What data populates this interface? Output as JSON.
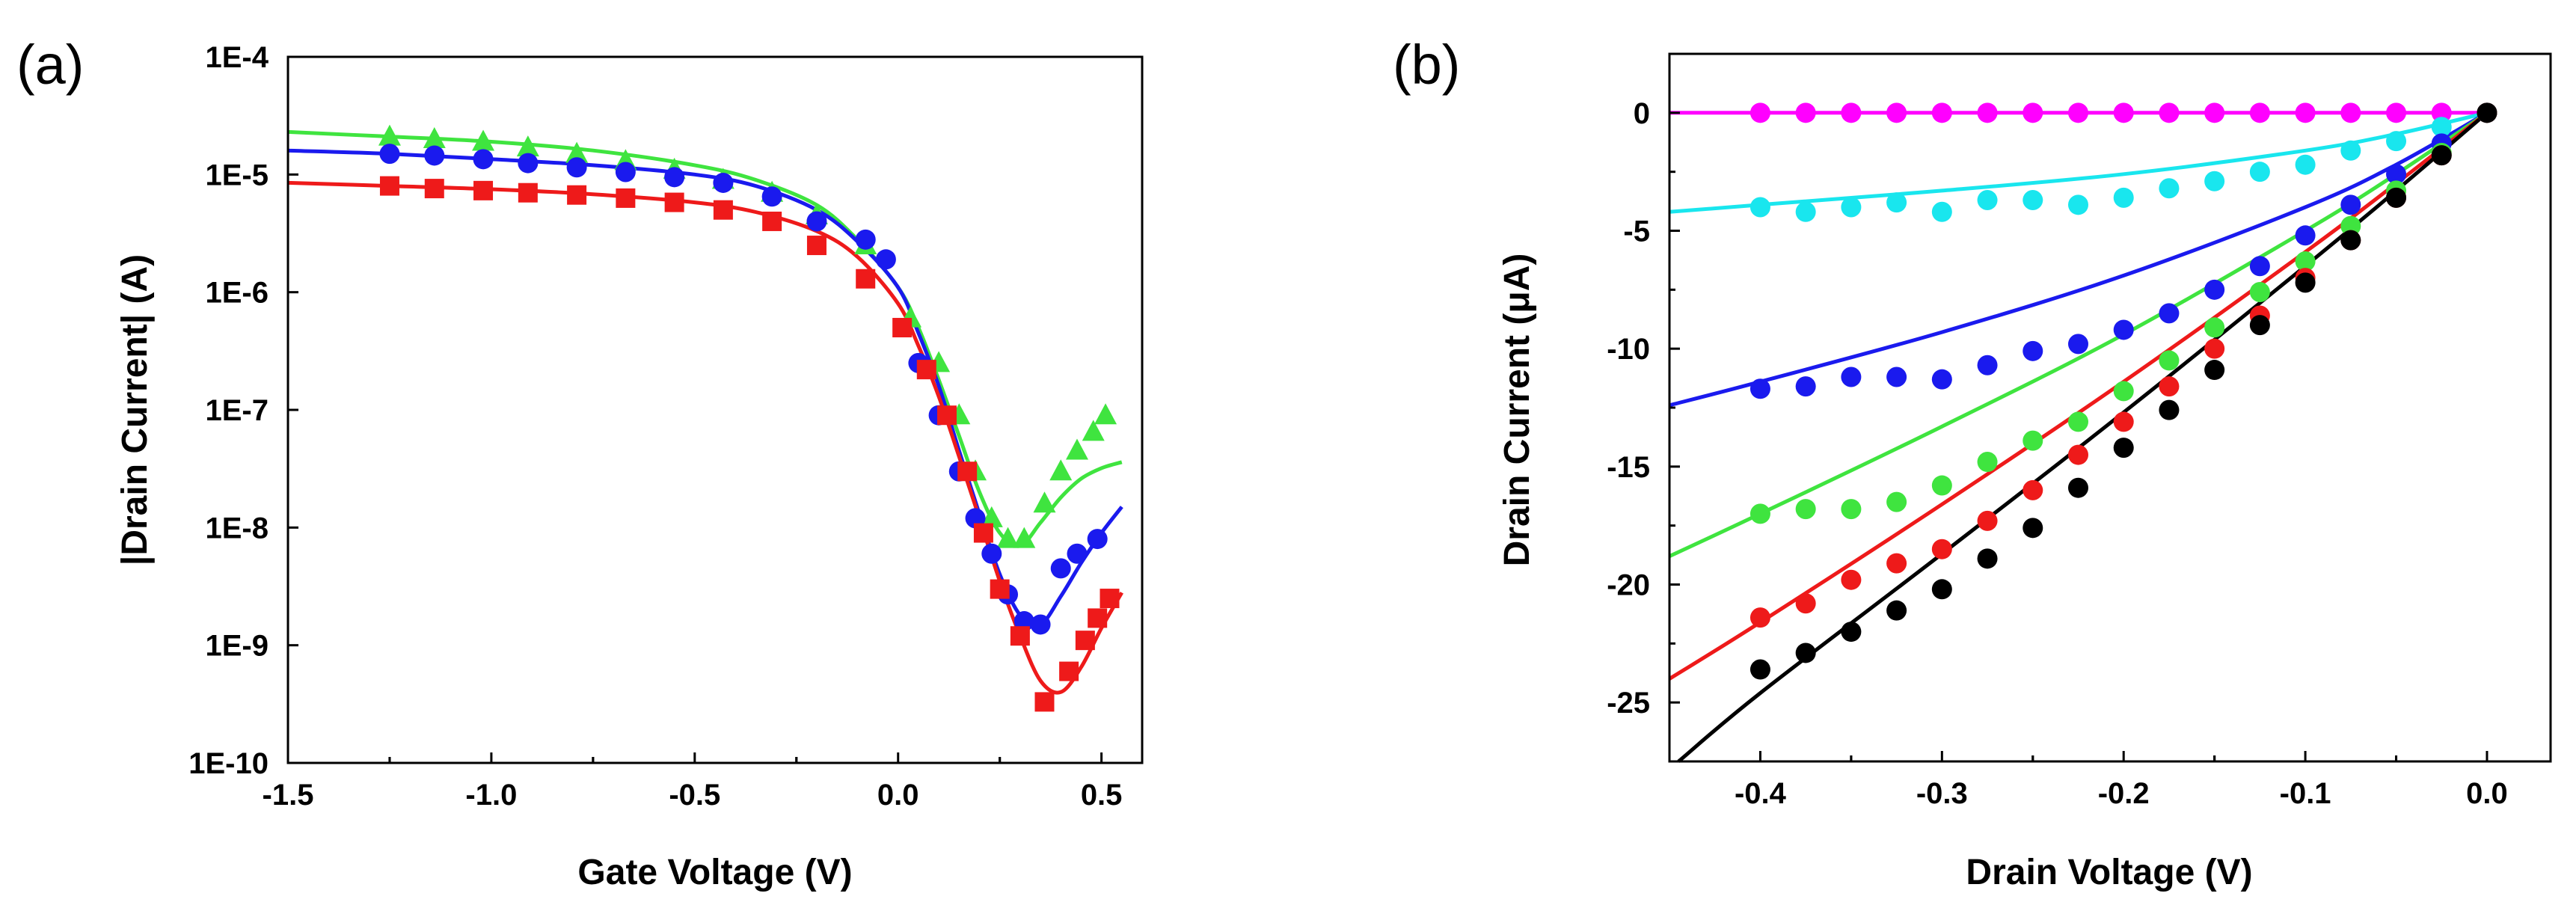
{
  "chart_data": [
    {
      "panel_label": "(a)",
      "type": "scatter",
      "xlabel": "Gate Voltage (V)",
      "ylabel": "|Drain Current| (A)",
      "xlim": [
        -1.5,
        0.6
      ],
      "ylim": [
        1e-10,
        0.0001
      ],
      "y_scale": "log",
      "grid": false,
      "x_ticks": [
        -1.5,
        -1.0,
        -0.5,
        0.0,
        0.5
      ],
      "x_tick_labels": [
        "-1.5",
        "-1.0",
        "-0.5",
        "0.0",
        "0.5"
      ],
      "y_ticks": [
        1e-10,
        1e-09,
        1e-08,
        1e-07,
        1e-06,
        1e-05,
        0.0001
      ],
      "y_tick_labels": [
        "1E-10",
        "1E-9",
        "1E-8",
        "1E-7",
        "1E-6",
        "1E-5",
        "1E-4"
      ],
      "series": [
        {
          "color": "#3fe43f",
          "marker": "triangle",
          "x": [
            -1.25,
            -1.14,
            -1.02,
            -0.91,
            -0.79,
            -0.67,
            -0.55,
            -0.43,
            -0.31,
            -0.2,
            -0.08,
            0.03,
            0.1,
            0.15,
            0.19,
            0.23,
            0.27,
            0.31,
            0.36,
            0.4,
            0.44,
            0.48,
            0.51
          ],
          "y": [
            2.1e-05,
            2e-05,
            1.9e-05,
            1.7e-05,
            1.5e-05,
            1.3e-05,
            1.1e-05,
            9e-06,
            7e-06,
            4.5e-06,
            2.5e-06,
            6e-07,
            2.5e-07,
            9e-08,
            3e-08,
            1.2e-08,
            8e-09,
            8e-09,
            1.6e-08,
            3e-08,
            4.5e-08,
            6.5e-08,
            9e-08
          ],
          "fit_x": [
            -1.5,
            -1.25,
            -1.0,
            -0.75,
            -0.5,
            -0.35,
            -0.2,
            -0.1,
            0.0,
            0.05,
            0.1,
            0.15,
            0.2,
            0.25,
            0.3,
            0.35,
            0.4,
            0.45,
            0.5,
            0.55
          ],
          "fit_y": [
            2.3e-05,
            2.1e-05,
            1.9e-05,
            1.6e-05,
            1.2e-05,
            9e-06,
            5.5e-06,
            2.8e-06,
            1.1e-06,
            5e-07,
            1.8e-07,
            6e-08,
            2e-08,
            9e-09,
            7e-09,
            1.1e-08,
            1.8e-08,
            2.6e-08,
            3.2e-08,
            3.6e-08
          ]
        },
        {
          "color": "#1a1aee",
          "marker": "circle",
          "x": [
            -1.25,
            -1.14,
            -1.02,
            -0.91,
            -0.79,
            -0.67,
            -0.55,
            -0.43,
            -0.31,
            -0.2,
            -0.08,
            -0.03,
            0.05,
            0.1,
            0.15,
            0.19,
            0.23,
            0.27,
            0.31,
            0.35,
            0.4,
            0.44,
            0.49
          ],
          "y": [
            1.5e-05,
            1.45e-05,
            1.35e-05,
            1.25e-05,
            1.15e-05,
            1.05e-05,
            9.5e-06,
            8.5e-06,
            6.5e-06,
            4e-06,
            2.8e-06,
            1.9e-06,
            2.5e-07,
            9e-08,
            3e-08,
            1.2e-08,
            6e-09,
            2.7e-09,
            1.6e-09,
            1.5e-09,
            4.5e-09,
            6e-09,
            8e-09
          ],
          "fit_x": [
            -1.5,
            -1.25,
            -1.0,
            -0.75,
            -0.5,
            -0.35,
            -0.2,
            -0.1,
            0.0,
            0.05,
            0.1,
            0.15,
            0.2,
            0.25,
            0.3,
            0.35,
            0.4,
            0.45,
            0.5,
            0.55
          ],
          "fit_y": [
            1.6e-05,
            1.5e-05,
            1.35e-05,
            1.2e-05,
            1e-05,
            8e-06,
            5e-06,
            2.7e-06,
            1.1e-06,
            4.5e-07,
            1.6e-07,
            4.5e-08,
            1.3e-08,
            4e-09,
            1.8e-09,
            1.5e-09,
            2.6e-09,
            5e-09,
            9e-09,
            1.5e-08
          ]
        },
        {
          "color": "#ee1a1a",
          "marker": "square",
          "x": [
            -1.25,
            -1.14,
            -1.02,
            -0.91,
            -0.79,
            -0.67,
            -0.55,
            -0.43,
            -0.31,
            -0.2,
            -0.08,
            0.01,
            0.07,
            0.12,
            0.17,
            0.21,
            0.25,
            0.3,
            0.36,
            0.42,
            0.46,
            0.49,
            0.52
          ],
          "y": [
            8e-06,
            7.6e-06,
            7.3e-06,
            7e-06,
            6.7e-06,
            6.3e-06,
            5.8e-06,
            5e-06,
            4e-06,
            2.5e-06,
            1.3e-06,
            5e-07,
            2.2e-07,
            9e-08,
            3e-08,
            9e-09,
            3e-09,
            1.2e-09,
            3.3e-10,
            6e-10,
            1.1e-09,
            1.7e-09,
            2.5e-09
          ],
          "fit_x": [
            -1.5,
            -1.25,
            -1.0,
            -0.75,
            -0.5,
            -0.35,
            -0.2,
            -0.1,
            0.0,
            0.05,
            0.1,
            0.15,
            0.2,
            0.25,
            0.3,
            0.35,
            0.4,
            0.45,
            0.5,
            0.55
          ],
          "fit_y": [
            8.5e-06,
            8e-06,
            7.5e-06,
            6.8e-06,
            5.8e-06,
            4.8e-06,
            3.3e-06,
            2e-06,
            8e-07,
            3.5e-07,
            1.3e-07,
            4e-08,
            1.2e-08,
            3.5e-09,
            1.2e-09,
            5e-10,
            4e-10,
            6.5e-10,
            1.4e-09,
            2.8e-09
          ]
        }
      ]
    },
    {
      "panel_label": "(b)",
      "type": "scatter",
      "xlabel": "Drain Voltage (V)",
      "ylabel": "Drain Current (μA)",
      "xlim": [
        -0.45,
        0.035
      ],
      "ylim": [
        -27.5,
        2.5
      ],
      "grid": false,
      "x_ticks": [
        -0.4,
        -0.3,
        -0.2,
        -0.1,
        0.0
      ],
      "x_tick_labels": [
        "-0.4",
        "-0.3",
        "-0.2",
        "-0.1",
        "0.0"
      ],
      "y_ticks": [
        0,
        -5,
        -10,
        -15,
        -20,
        -25
      ],
      "y_tick_labels": [
        "0",
        "-5",
        "-10",
        "-15",
        "-20",
        "-25"
      ],
      "x": [
        -0.4,
        -0.375,
        -0.35,
        -0.325,
        -0.3,
        -0.275,
        -0.25,
        -0.225,
        -0.2,
        -0.175,
        -0.15,
        -0.125,
        -0.1,
        -0.075,
        -0.05,
        -0.025,
        0.0
      ],
      "series": [
        {
          "color": "#ff00ff",
          "y": [
            0,
            0,
            0,
            0,
            0,
            0,
            0,
            0,
            0,
            0,
            0,
            0,
            0,
            0,
            0,
            0,
            0
          ],
          "fit_x": [
            -0.45,
            0.0
          ],
          "fit_y": [
            0,
            0
          ]
        },
        {
          "color": "#19e6ee",
          "y": [
            -4.0,
            -4.2,
            -4.0,
            -3.8,
            -4.2,
            -3.7,
            -3.7,
            -3.9,
            -3.6,
            -3.2,
            -2.9,
            -2.5,
            -2.2,
            -1.6,
            -1.2,
            -0.6,
            0
          ],
          "fit_x": [
            -0.45,
            -0.4,
            -0.3,
            -0.2,
            -0.1,
            -0.05,
            0.0
          ],
          "fit_y": [
            -4.2,
            -3.9,
            -3.3,
            -2.6,
            -1.6,
            -0.9,
            0
          ]
        },
        {
          "color": "#1a1aee",
          "y": [
            -11.7,
            -11.6,
            -11.2,
            -11.2,
            -11.3,
            -10.7,
            -10.1,
            -9.8,
            -9.2,
            -8.5,
            -7.5,
            -6.5,
            -5.2,
            -3.9,
            -2.6,
            -1.3,
            0
          ],
          "fit_x": [
            -0.45,
            -0.4,
            -0.3,
            -0.2,
            -0.1,
            -0.05,
            0.0
          ],
          "fit_y": [
            -12.4,
            -11.4,
            -9.3,
            -6.9,
            -4.0,
            -2.2,
            0
          ]
        },
        {
          "color": "#3fe43f",
          "y": [
            -17.0,
            -16.8,
            -16.8,
            -16.5,
            -15.8,
            -14.8,
            -13.9,
            -13.1,
            -11.8,
            -10.5,
            -9.1,
            -7.6,
            -6.3,
            -4.8,
            -3.3,
            -1.7,
            0
          ],
          "fit_x": [
            -0.45,
            -0.4,
            -0.3,
            -0.2,
            -0.1,
            -0.05,
            0.0
          ],
          "fit_y": [
            -18.8,
            -17.0,
            -13.3,
            -9.4,
            -5.0,
            -2.6,
            0
          ]
        },
        {
          "color": "#ee1a1a",
          "y": [
            -21.4,
            -20.8,
            -19.8,
            -19.1,
            -18.5,
            -17.3,
            -16.0,
            -14.5,
            -13.1,
            -11.6,
            -10.0,
            -8.6,
            -7.0,
            -5.4,
            -3.6,
            -1.8,
            0
          ],
          "fit_x": [
            -0.45,
            -0.4,
            -0.3,
            -0.2,
            -0.1,
            -0.05,
            0.0
          ],
          "fit_y": [
            -24.0,
            -21.6,
            -16.6,
            -11.4,
            -5.9,
            -3.0,
            0
          ]
        },
        {
          "color": "#000000",
          "y": [
            -23.6,
            -22.9,
            -22.0,
            -21.1,
            -20.2,
            -18.9,
            -17.6,
            -15.9,
            -14.2,
            -12.6,
            -10.9,
            -9.0,
            -7.2,
            -5.4,
            -3.6,
            -1.8,
            0
          ],
          "fit_x": [
            -0.445,
            -0.4,
            -0.3,
            -0.2,
            -0.1,
            -0.05,
            0.0
          ],
          "fit_y": [
            -27.5,
            -24.6,
            -18.7,
            -12.7,
            -6.5,
            -3.3,
            0
          ]
        }
      ]
    }
  ]
}
